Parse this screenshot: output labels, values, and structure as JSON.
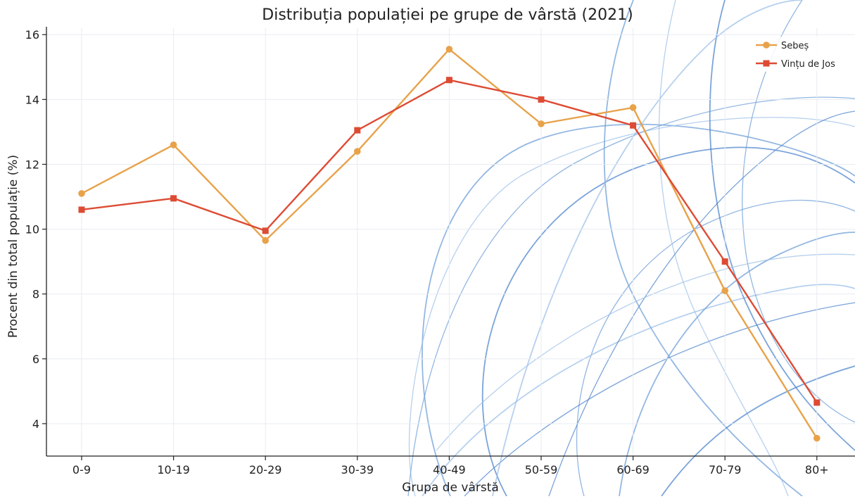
{
  "chart_data": {
    "type": "line",
    "title": "Distribuția populației pe grupe de vârstă (2021)",
    "xlabel": "Grupa de vârstă",
    "ylabel": "Procent din total populație (%)",
    "categories": [
      "0-9",
      "10-19",
      "20-29",
      "30-39",
      "40-49",
      "50-59",
      "60-69",
      "70-79",
      "80+"
    ],
    "ylim": [
      3,
      16.2
    ],
    "yticks": [
      4,
      6,
      8,
      10,
      12,
      14,
      16
    ],
    "grid": true,
    "legend_position": "top-right",
    "series": [
      {
        "name": "Sebeș",
        "color": "#e8a24a",
        "marker": "circle",
        "values": [
          11.1,
          12.6,
          9.65,
          12.4,
          15.55,
          13.25,
          13.75,
          8.1,
          3.55
        ]
      },
      {
        "name": "Vințu de Jos",
        "color": "#dd4b33",
        "marker": "square",
        "values": [
          10.6,
          10.95,
          9.95,
          13.05,
          14.6,
          14.0,
          13.2,
          9.0,
          4.65
        ]
      }
    ]
  }
}
